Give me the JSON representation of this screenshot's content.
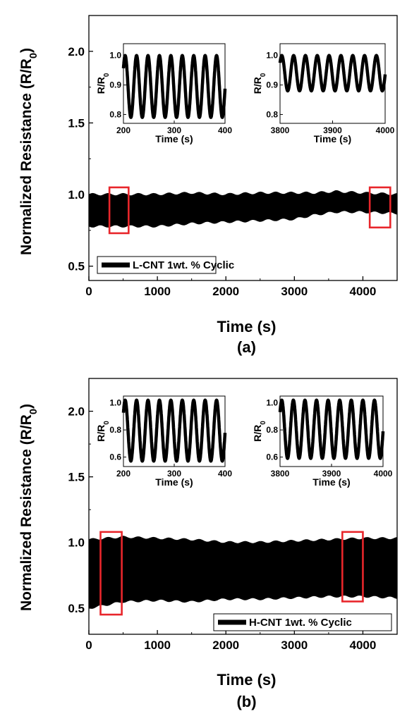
{
  "chart_data": [
    {
      "type": "line",
      "panel_label": "(a)",
      "xlabel": "Time (s)",
      "ylabel": "Normalized Resistance (R/R0)",
      "xlim": [
        0,
        4500
      ],
      "ylim": [
        0.4,
        2.25
      ],
      "xticks": [
        0,
        1000,
        2000,
        3000,
        4000
      ],
      "yticks": [
        0.5,
        1.0,
        1.5,
        2.0
      ],
      "x_tick_labels": [
        "0",
        "1000",
        "2000",
        "3000",
        "4000"
      ],
      "y_tick_labels": [
        "0.5",
        "1.0",
        "1.5",
        "2.0"
      ],
      "legend": {
        "label": "L-CNT 1wt. % Cyclic",
        "placement": "bottom-left"
      },
      "series": [
        {
          "name": "L-CNT 1wt. % Cyclic",
          "x": [
            0,
            500,
            1000,
            1500,
            2000,
            2500,
            3000,
            3300,
            3600,
            4000,
            4500
          ],
          "upper": [
            1.0,
            1.0,
            1.0,
            1.01,
            1.0,
            1.01,
            1.01,
            1.01,
            1.02,
            1.01,
            1.0
          ],
          "lower": [
            0.78,
            0.78,
            0.78,
            0.8,
            0.81,
            0.82,
            0.83,
            0.86,
            0.88,
            0.88,
            0.87
          ]
        }
      ],
      "highlight_boxes": [
        {
          "x": [
            300,
            580
          ],
          "y": [
            0.73,
            1.05
          ]
        },
        {
          "x": [
            4100,
            4400
          ],
          "y": [
            0.77,
            1.05
          ]
        }
      ],
      "insets": [
        {
          "xlabel": "Time (s)",
          "ylabel": "R/R0",
          "xlim": [
            200,
            400
          ],
          "ylim": [
            0.77,
            1.04
          ],
          "xticks": [
            200,
            300,
            400
          ],
          "yticks": [
            0.8,
            0.9,
            1.0
          ],
          "x_tick_labels": [
            "200",
            "300",
            "400"
          ],
          "y_tick_labels": [
            "0.8",
            "0.9",
            "1.0"
          ],
          "period": 22.5,
          "peak": 1.0,
          "trough": 0.79
        },
        {
          "xlabel": "Time (s)",
          "ylabel": "R/R0",
          "xlim": [
            3800,
            4000
          ],
          "ylim": [
            0.77,
            1.04
          ],
          "xticks": [
            3800,
            3900,
            4000
          ],
          "yticks": [
            0.8,
            0.9,
            1.0
          ],
          "x_tick_labels": [
            "3800",
            "3900",
            "4000"
          ],
          "y_tick_labels": [
            "0.8",
            "0.9",
            "1.0"
          ],
          "period": 22.5,
          "peak": 1.0,
          "trough": 0.88
        }
      ]
    },
    {
      "type": "line",
      "panel_label": "(b)",
      "xlabel": "Time (s)",
      "ylabel": "Normalized Resistance (R/R0)",
      "xlim": [
        0,
        4500
      ],
      "ylim": [
        0.3,
        2.25
      ],
      "xticks": [
        0,
        1000,
        2000,
        3000,
        4000
      ],
      "yticks": [
        0.5,
        1.0,
        1.5,
        2.0
      ],
      "x_tick_labels": [
        "0",
        "1000",
        "2000",
        "3000",
        "4000"
      ],
      "y_tick_labels": [
        "0.5",
        "1.0",
        "1.5",
        "2.0"
      ],
      "legend": {
        "label": "H-CNT 1wt. % Cyclic",
        "placement": "bottom-right"
      },
      "series": [
        {
          "name": "H-CNT 1wt. % Cyclic",
          "x": [
            0,
            500,
            1000,
            1500,
            2000,
            2500,
            3000,
            3500,
            4000,
            4500
          ],
          "upper": [
            1.02,
            1.04,
            1.03,
            1.02,
            1.0,
            1.0,
            1.01,
            1.02,
            1.03,
            1.03
          ],
          "lower": [
            0.5,
            0.55,
            0.56,
            0.55,
            0.57,
            0.57,
            0.58,
            0.59,
            0.59,
            0.58
          ]
        }
      ],
      "highlight_boxes": [
        {
          "x": [
            170,
            480
          ],
          "y": [
            0.45,
            1.08
          ]
        },
        {
          "x": [
            3700,
            4000
          ],
          "y": [
            0.55,
            1.08
          ]
        }
      ],
      "insets": [
        {
          "xlabel": "Time (s)",
          "ylabel": "R/R0",
          "xlim": [
            200,
            400
          ],
          "ylim": [
            0.53,
            1.05
          ],
          "xticks": [
            200,
            300,
            400
          ],
          "yticks": [
            0.6,
            0.8,
            1.0
          ],
          "x_tick_labels": [
            "200",
            "300",
            "400"
          ],
          "y_tick_labels": [
            "0.6",
            "0.8",
            "1.0"
          ],
          "period": 22.5,
          "peak": 1.02,
          "trough": 0.57
        },
        {
          "xlabel": "Time (s)",
          "ylabel": "R/R0",
          "xlim": [
            3800,
            4000
          ],
          "ylim": [
            0.53,
            1.05
          ],
          "xticks": [
            3800,
            3900,
            4000
          ],
          "yticks": [
            0.6,
            0.8,
            1.0
          ],
          "x_tick_labels": [
            "3800",
            "3900",
            "4000"
          ],
          "y_tick_labels": [
            "0.6",
            "0.8",
            "1.0"
          ],
          "period": 22.5,
          "peak": 1.02,
          "trough": 0.59
        }
      ]
    }
  ],
  "colors": {
    "data": "#000000",
    "highlight_box": "#e8262b",
    "axes": "#000000",
    "background": "#ffffff"
  }
}
